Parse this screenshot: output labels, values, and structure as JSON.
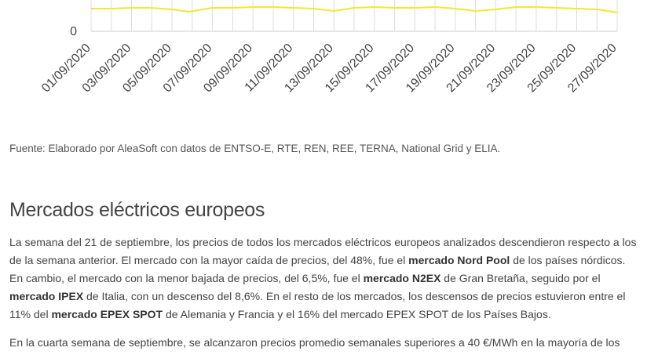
{
  "chart": {
    "yticks": [
      0
    ],
    "categories": [
      "01/09/2020",
      "03/09/2020",
      "05/09/2020",
      "07/09/2020",
      "09/09/2020",
      "11/09/2020",
      "13/09/2020",
      "15/09/2020",
      "17/09/2020",
      "19/09/2020",
      "21/09/2020",
      "23/09/2020",
      "25/09/2020",
      "27/09/2020"
    ]
  },
  "source": "Fuente: Elaborado por AleaSoft con datos de ENTSO-E, RTE, REN, REE, TERNA, National Grid y ELIA.",
  "heading": "Mercados eléctricos europeos",
  "paragraphs": [
    [
      {
        "text": "La semana del 21 de septiembre, los precios de todos los mercados eléctricos europeos analizados descendieron respecto a los de la semana anterior. El mercado con la mayor caída de precios, del 48%, fue el ",
        "bold": false
      },
      {
        "text": "mercado Nord Pool",
        "bold": true
      },
      {
        "text": " de los países nórdicos. En cambio, el mercado con la menor bajada de precios, del 6,5%, fue el ",
        "bold": false
      },
      {
        "text": "mercado N2EX",
        "bold": true
      },
      {
        "text": " de Gran Bretaña, seguido por el ",
        "bold": false
      },
      {
        "text": "mercado IPEX",
        "bold": true
      },
      {
        "text": " de Italia, con un descenso del 8,6%. En el resto de los mercados, los descensos de precios estuvieron entre el 11% del ",
        "bold": false
      },
      {
        "text": "mercado EPEX SPOT",
        "bold": true
      },
      {
        "text": " de Alemania y Francia y el 16% del mercado EPEX SPOT de los Países Bajos.",
        "bold": false
      }
    ],
    [
      {
        "text": "En la cuarta semana de septiembre, se alcanzaron precios promedio semanales superiores a 40 €/MWh en la mayoría de los",
        "bold": false
      }
    ]
  ]
}
